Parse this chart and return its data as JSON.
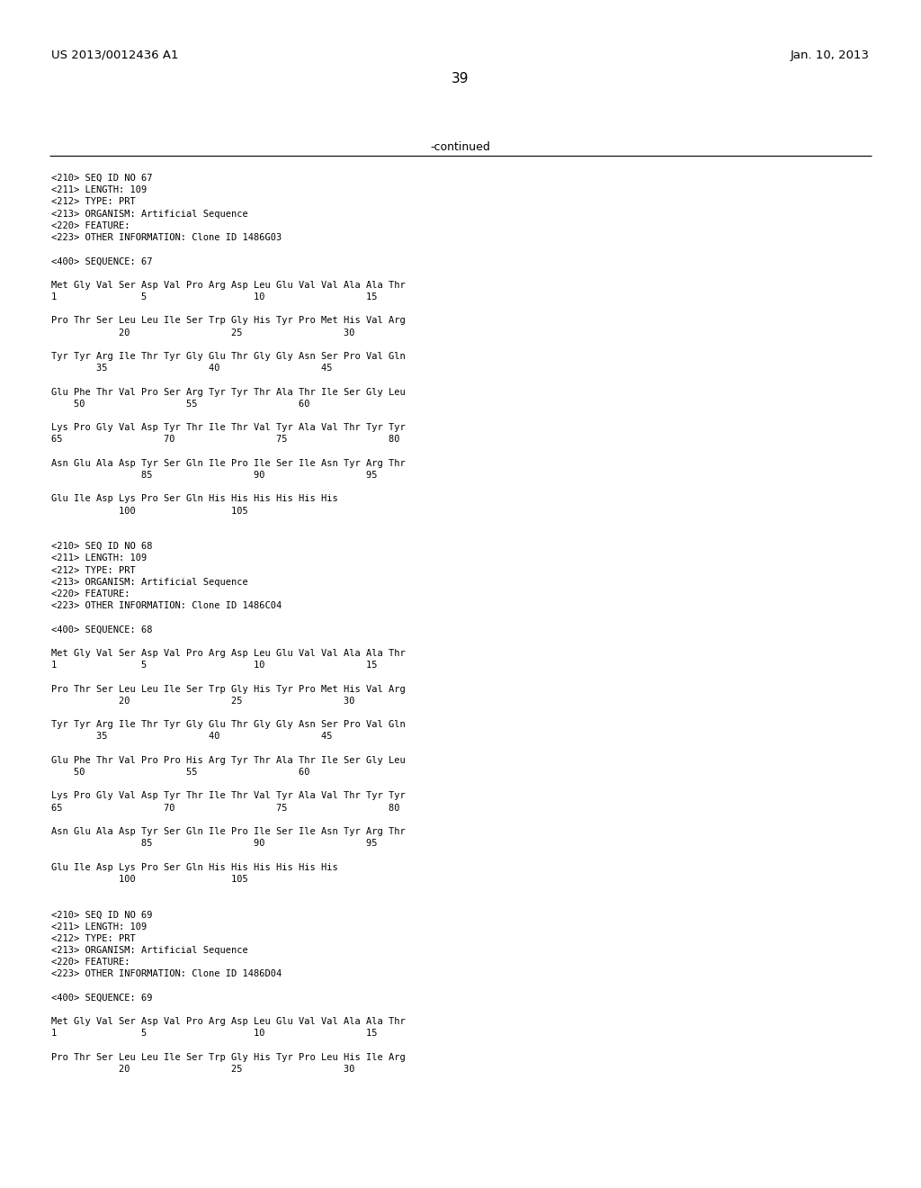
{
  "header_left": "US 2013/0012436 A1",
  "header_right": "Jan. 10, 2013",
  "page_number": "39",
  "continued_text": "-continued",
  "background_color": "#ffffff",
  "text_color": "#000000",
  "content": [
    "<210> SEQ ID NO 67",
    "<211> LENGTH: 109",
    "<212> TYPE: PRT",
    "<213> ORGANISM: Artificial Sequence",
    "<220> FEATURE:",
    "<223> OTHER INFORMATION: Clone ID 1486G03",
    "",
    "<400> SEQUENCE: 67",
    "",
    "Met Gly Val Ser Asp Val Pro Arg Asp Leu Glu Val Val Ala Ala Thr",
    "1               5                   10                  15",
    "",
    "Pro Thr Ser Leu Leu Ile Ser Trp Gly His Tyr Pro Met His Val Arg",
    "            20                  25                  30",
    "",
    "Tyr Tyr Arg Ile Thr Tyr Gly Glu Thr Gly Gly Asn Ser Pro Val Gln",
    "        35                  40                  45",
    "",
    "Glu Phe Thr Val Pro Ser Arg Tyr Tyr Thr Ala Thr Ile Ser Gly Leu",
    "    50                  55                  60",
    "",
    "Lys Pro Gly Val Asp Tyr Thr Ile Thr Val Tyr Ala Val Thr Tyr Tyr",
    "65                  70                  75                  80",
    "",
    "Asn Glu Ala Asp Tyr Ser Gln Ile Pro Ile Ser Ile Asn Tyr Arg Thr",
    "                85                  90                  95",
    "",
    "Glu Ile Asp Lys Pro Ser Gln His His His His His His",
    "            100                 105",
    "",
    "",
    "<210> SEQ ID NO 68",
    "<211> LENGTH: 109",
    "<212> TYPE: PRT",
    "<213> ORGANISM: Artificial Sequence",
    "<220> FEATURE:",
    "<223> OTHER INFORMATION: Clone ID 1486C04",
    "",
    "<400> SEQUENCE: 68",
    "",
    "Met Gly Val Ser Asp Val Pro Arg Asp Leu Glu Val Val Ala Ala Thr",
    "1               5                   10                  15",
    "",
    "Pro Thr Ser Leu Leu Ile Ser Trp Gly His Tyr Pro Met His Val Arg",
    "            20                  25                  30",
    "",
    "Tyr Tyr Arg Ile Thr Tyr Gly Glu Thr Gly Gly Asn Ser Pro Val Gln",
    "        35                  40                  45",
    "",
    "Glu Phe Thr Val Pro Pro His Arg Tyr Thr Ala Thr Ile Ser Gly Leu",
    "    50                  55                  60",
    "",
    "Lys Pro Gly Val Asp Tyr Thr Ile Thr Val Tyr Ala Val Thr Tyr Tyr",
    "65                  70                  75                  80",
    "",
    "Asn Glu Ala Asp Tyr Ser Gln Ile Pro Ile Ser Ile Asn Tyr Arg Thr",
    "                85                  90                  95",
    "",
    "Glu Ile Asp Lys Pro Ser Gln His His His His His His",
    "            100                 105",
    "",
    "",
    "<210> SEQ ID NO 69",
    "<211> LENGTH: 109",
    "<212> TYPE: PRT",
    "<213> ORGANISM: Artificial Sequence",
    "<220> FEATURE:",
    "<223> OTHER INFORMATION: Clone ID 1486D04",
    "",
    "<400> SEQUENCE: 69",
    "",
    "Met Gly Val Ser Asp Val Pro Arg Asp Leu Glu Val Val Ala Ala Thr",
    "1               5                   10                  15",
    "",
    "Pro Thr Ser Leu Leu Ile Ser Trp Gly His Tyr Pro Leu His Ile Arg",
    "            20                  25                  30"
  ]
}
